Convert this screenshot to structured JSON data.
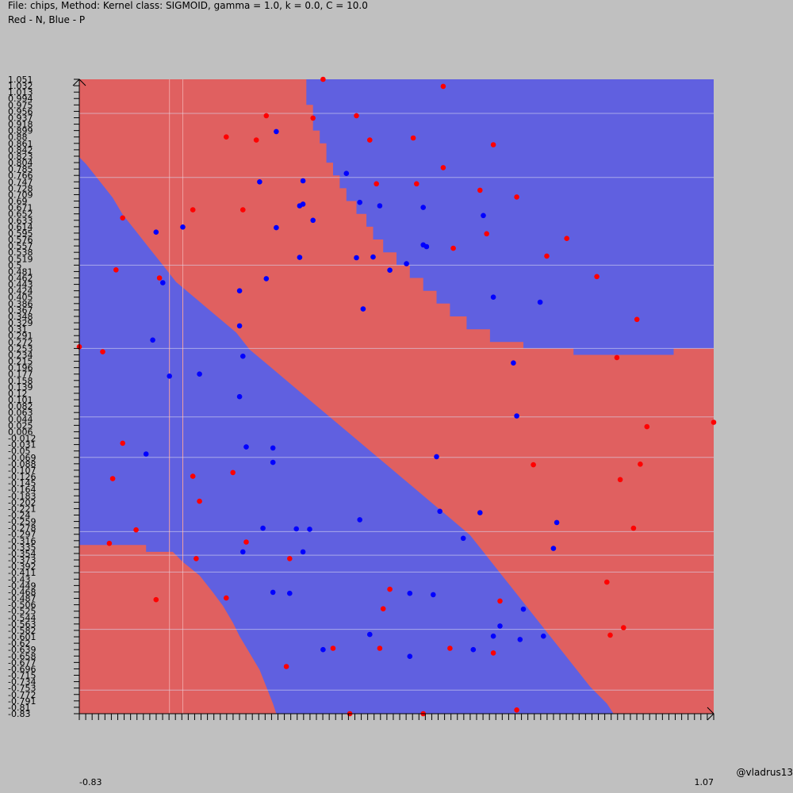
{
  "header": {
    "line1": "File: chips, Method: Kernel class: SIGMOID, gamma = 1.0, k = 0.0, C = 10.0",
    "line2": "Red - N, Blue - P"
  },
  "credit": "@vladrus13",
  "colors": {
    "background": "#c0c0c0",
    "region_n": "#e06060",
    "region_p": "#6060e0",
    "point_n": "#ff0000",
    "point_p": "#0000ff"
  },
  "chart_data": {
    "type": "scatter",
    "title": "",
    "legend": "Red - N, Blue - P",
    "xlim": [
      -0.83,
      1.07
    ],
    "ylim": [
      -0.83,
      1.051
    ],
    "y_ticks": [
      "1.051",
      "1.032",
      "1.013",
      "0.994",
      "0.975",
      "0.956",
      "0.937",
      "0.918",
      "0.899",
      "0.88",
      "0.861",
      "0.842",
      "0.823",
      "0.804",
      "0.785",
      "0.766",
      "0.747",
      "0.728",
      "0.709",
      "0.69",
      "0.671",
      "0.652",
      "0.633",
      "0.614",
      "0.595",
      "0.576",
      "0.557",
      "0.538",
      "0.519",
      "0.5",
      "0.481",
      "0.462",
      "0.443",
      "0.424",
      "0.405",
      "0.386",
      "0.367",
      "0.348",
      "0.329",
      "0.31",
      "0.291",
      "0.272",
      "0.253",
      "0.234",
      "0.215",
      "0.196",
      "0.177",
      "0.158",
      "0.139",
      "0.12",
      "0.101",
      "0.082",
      "0.063",
      "0.044",
      "0.025",
      "0.006",
      "-0.012",
      "-0.031",
      "-0.05",
      "-0.069",
      "-0.088",
      "-0.107",
      "-0.126",
      "-0.145",
      "-0.164",
      "-0.183",
      "-0.202",
      "-0.221",
      "-0.24",
      "-0.259",
      "-0.278",
      "-0.297",
      "-0.316",
      "-0.335",
      "-0.354",
      "-0.373",
      "-0.392",
      "-0.411",
      "-0.43",
      "-0.449",
      "-0.468",
      "-0.487",
      "-0.506",
      "-0.525",
      "-0.544",
      "-0.563",
      "-0.582",
      "-0.601",
      "-0.62",
      "-0.639",
      "-0.658",
      "-0.677",
      "-0.696",
      "-0.715",
      "-0.734",
      "-0.753",
      "-0.772",
      "-0.791",
      "-0.81",
      "-0.83"
    ],
    "x_tick_count": 100,
    "x_tick_first": "-0.83",
    "x_tick_last": "1.07",
    "boundary_n": [
      [
        [
          -0.83,
          1.051
        ],
        [
          -0.15,
          1.051
        ],
        [
          -0.15,
          0.975
        ],
        [
          -0.13,
          0.975
        ],
        [
          -0.13,
          0.899
        ],
        [
          -0.11,
          0.899
        ],
        [
          -0.11,
          0.861
        ],
        [
          -0.09,
          0.861
        ],
        [
          -0.09,
          0.804
        ],
        [
          -0.07,
          0.804
        ],
        [
          -0.07,
          0.766
        ],
        [
          -0.05,
          0.766
        ],
        [
          -0.05,
          0.728
        ],
        [
          -0.03,
          0.728
        ],
        [
          -0.03,
          0.69
        ],
        [
          0.0,
          0.69
        ],
        [
          0.0,
          0.652
        ],
        [
          0.03,
          0.652
        ],
        [
          0.03,
          0.614
        ],
        [
          0.05,
          0.614
        ],
        [
          0.05,
          0.576
        ],
        [
          0.08,
          0.576
        ],
        [
          0.08,
          0.538
        ],
        [
          0.12,
          0.538
        ],
        [
          0.12,
          0.5
        ],
        [
          0.16,
          0.5
        ],
        [
          0.16,
          0.462
        ],
        [
          0.2,
          0.462
        ],
        [
          0.2,
          0.424
        ],
        [
          0.24,
          0.424
        ],
        [
          0.24,
          0.386
        ],
        [
          0.28,
          0.386
        ],
        [
          0.28,
          0.348
        ],
        [
          0.33,
          0.348
        ],
        [
          0.33,
          0.31
        ],
        [
          0.4,
          0.31
        ],
        [
          0.4,
          0.272
        ],
        [
          0.5,
          0.272
        ],
        [
          0.5,
          0.253
        ],
        [
          0.65,
          0.253
        ],
        [
          0.65,
          0.234
        ],
        [
          0.95,
          0.234
        ],
        [
          0.95,
          0.253
        ],
        [
          1.07,
          0.253
        ],
        [
          1.07,
          -0.83
        ],
        [
          0.77,
          -0.83
        ],
        [
          0.75,
          -0.8
        ],
        [
          0.7,
          -0.75
        ],
        [
          0.66,
          -0.7
        ],
        [
          0.62,
          -0.65
        ],
        [
          0.58,
          -0.6
        ],
        [
          0.54,
          -0.55
        ],
        [
          0.5,
          -0.5
        ],
        [
          0.46,
          -0.45
        ],
        [
          0.42,
          -0.4
        ],
        [
          0.38,
          -0.35
        ],
        [
          0.34,
          -0.3
        ],
        [
          0.28,
          -0.25
        ],
        [
          0.22,
          -0.2
        ],
        [
          0.16,
          -0.15
        ],
        [
          0.1,
          -0.1
        ],
        [
          0.04,
          -0.05
        ],
        [
          -0.02,
          0.0
        ],
        [
          -0.08,
          0.05
        ],
        [
          -0.14,
          0.1
        ],
        [
          -0.2,
          0.15
        ],
        [
          -0.26,
          0.2
        ],
        [
          -0.32,
          0.25
        ],
        [
          -0.36,
          0.3
        ],
        [
          -0.42,
          0.35
        ],
        [
          -0.48,
          0.4
        ],
        [
          -0.54,
          0.45
        ],
        [
          -0.58,
          0.5
        ],
        [
          -0.62,
          0.55
        ],
        [
          -0.66,
          0.6
        ],
        [
          -0.7,
          0.65
        ],
        [
          -0.73,
          0.7
        ],
        [
          -0.77,
          0.75
        ],
        [
          -0.81,
          0.8
        ],
        [
          -0.83,
          0.82
        ]
      ],
      [
        [
          -0.83,
          -0.33
        ],
        [
          -0.63,
          -0.33
        ],
        [
          -0.63,
          -0.35
        ],
        [
          -0.55,
          -0.35
        ],
        [
          -0.52,
          -0.38
        ],
        [
          -0.47,
          -0.42
        ],
        [
          -0.43,
          -0.47
        ],
        [
          -0.4,
          -0.51
        ],
        [
          -0.37,
          -0.56
        ],
        [
          -0.35,
          -0.6
        ],
        [
          -0.32,
          -0.65
        ],
        [
          -0.29,
          -0.7
        ],
        [
          -0.27,
          -0.75
        ],
        [
          -0.25,
          -0.8
        ],
        [
          -0.24,
          -0.83
        ],
        [
          -0.83,
          -0.83
        ]
      ]
    ],
    "series": [
      {
        "name": "N",
        "points": [
          [
            -0.1,
            1.051
          ],
          [
            0.26,
            1.03
          ],
          [
            -0.27,
            0.943
          ],
          [
            0.0,
            0.943
          ],
          [
            -0.13,
            0.936
          ],
          [
            -0.39,
            0.88
          ],
          [
            -0.3,
            0.871
          ],
          [
            0.04,
            0.871
          ],
          [
            0.17,
            0.877
          ],
          [
            0.26,
            0.789
          ],
          [
            0.41,
            0.857
          ],
          [
            0.06,
            0.741
          ],
          [
            0.18,
            0.741
          ],
          [
            0.37,
            0.722
          ],
          [
            0.48,
            0.702
          ],
          [
            -0.49,
            0.664
          ],
          [
            -0.34,
            0.664
          ],
          [
            -0.7,
            0.64
          ],
          [
            0.39,
            0.593
          ],
          [
            0.63,
            0.579
          ],
          [
            0.29,
            0.55
          ],
          [
            0.57,
            0.527
          ],
          [
            -0.72,
            0.486
          ],
          [
            -0.59,
            0.462
          ],
          [
            0.72,
            0.466
          ],
          [
            0.84,
            0.339
          ],
          [
            0.78,
            0.226
          ],
          [
            -0.83,
            0.258
          ],
          [
            -0.76,
            0.243
          ],
          [
            0.87,
            0.021
          ],
          [
            1.07,
            0.034
          ],
          [
            -0.7,
            -0.028
          ],
          [
            0.53,
            -0.092
          ],
          [
            0.85,
            -0.09
          ],
          [
            -0.49,
            -0.126
          ],
          [
            -0.73,
            -0.133
          ],
          [
            -0.37,
            -0.115
          ],
          [
            0.79,
            -0.136
          ],
          [
            -0.47,
            -0.2
          ],
          [
            -0.66,
            -0.285
          ],
          [
            0.83,
            -0.28
          ],
          [
            -0.74,
            -0.325
          ],
          [
            -0.33,
            -0.321
          ],
          [
            -0.48,
            -0.37
          ],
          [
            -0.2,
            -0.37
          ],
          [
            0.75,
            -0.44
          ],
          [
            -0.6,
            -0.492
          ],
          [
            -0.39,
            -0.487
          ],
          [
            0.1,
            -0.461
          ],
          [
            0.08,
            -0.519
          ],
          [
            0.43,
            -0.496
          ],
          [
            0.8,
            -0.575
          ],
          [
            0.76,
            -0.597
          ],
          [
            -0.07,
            -0.636
          ],
          [
            0.07,
            -0.636
          ],
          [
            0.28,
            -0.636
          ],
          [
            0.41,
            -0.65
          ],
          [
            -0.21,
            -0.69
          ],
          [
            0.48,
            -0.819
          ],
          [
            0.2,
            -0.83
          ],
          [
            -0.02,
            -0.83
          ]
        ]
      },
      {
        "name": "P",
        "points": [
          [
            -0.24,
            0.896
          ],
          [
            -0.03,
            0.772
          ],
          [
            -0.16,
            0.75
          ],
          [
            -0.29,
            0.747
          ],
          [
            0.01,
            0.686
          ],
          [
            -0.16,
            0.681
          ],
          [
            -0.17,
            0.676
          ],
          [
            0.07,
            0.676
          ],
          [
            0.2,
            0.671
          ],
          [
            -0.13,
            0.633
          ],
          [
            -0.24,
            0.611
          ],
          [
            0.38,
            0.647
          ],
          [
            -0.6,
            0.598
          ],
          [
            -0.52,
            0.613
          ],
          [
            0.21,
            0.555
          ],
          [
            0.2,
            0.56
          ],
          [
            0.0,
            0.522
          ],
          [
            0.05,
            0.524
          ],
          [
            0.15,
            0.504
          ],
          [
            0.1,
            0.485
          ],
          [
            -0.17,
            0.523
          ],
          [
            -0.27,
            0.46
          ],
          [
            0.02,
            0.37
          ],
          [
            -0.58,
            0.448
          ],
          [
            -0.35,
            0.424
          ],
          [
            0.41,
            0.405
          ],
          [
            0.55,
            0.39
          ],
          [
            -0.35,
            0.32
          ],
          [
            -0.61,
            0.278
          ],
          [
            -0.34,
            0.23
          ],
          [
            0.47,
            0.21
          ],
          [
            -0.56,
            0.171
          ],
          [
            -0.35,
            0.11
          ],
          [
            -0.47,
            0.177
          ],
          [
            0.48,
            0.053
          ],
          [
            -0.63,
            -0.06
          ],
          [
            -0.33,
            -0.039
          ],
          [
            -0.25,
            -0.042
          ],
          [
            0.24,
            -0.068
          ],
          [
            -0.25,
            -0.085
          ],
          [
            0.37,
            -0.234
          ],
          [
            0.25,
            -0.23
          ],
          [
            -0.14,
            -0.283
          ],
          [
            0.01,
            -0.255
          ],
          [
            -0.18,
            -0.282
          ],
          [
            0.6,
            -0.263
          ],
          [
            0.59,
            -0.34
          ],
          [
            -0.34,
            -0.35
          ],
          [
            -0.16,
            -0.35
          ],
          [
            -0.28,
            -0.28
          ],
          [
            0.32,
            -0.31
          ],
          [
            -0.25,
            -0.47
          ],
          [
            -0.2,
            -0.473
          ],
          [
            0.16,
            -0.473
          ],
          [
            0.23,
            -0.477
          ],
          [
            0.5,
            -0.52
          ],
          [
            0.43,
            -0.57
          ],
          [
            0.41,
            -0.6
          ],
          [
            0.35,
            -0.64
          ],
          [
            0.16,
            -0.66
          ],
          [
            -0.1,
            -0.64
          ],
          [
            0.04,
            -0.595
          ],
          [
            0.56,
            -0.6
          ],
          [
            0.49,
            -0.61
          ]
        ]
      }
    ]
  }
}
